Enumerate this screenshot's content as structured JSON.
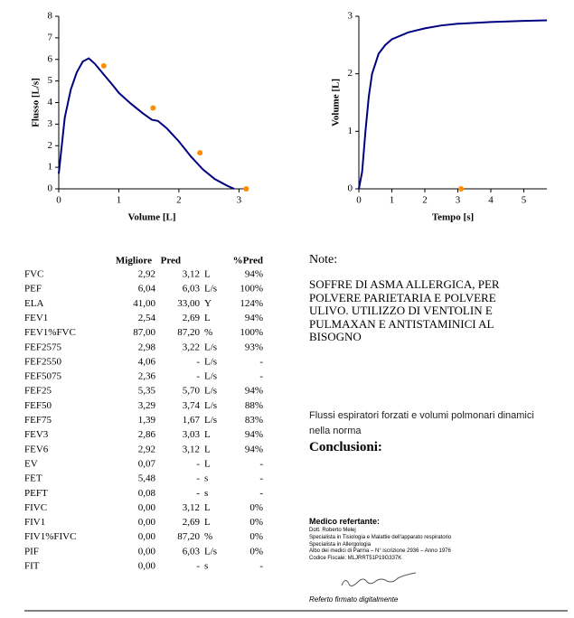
{
  "chart_data": [
    {
      "type": "line",
      "ylabel": "Flusso [L/s]",
      "xlabel": "Volume [L]",
      "color": "#000080",
      "xlim": [
        0,
        3.1
      ],
      "xticks": [
        0,
        1,
        2,
        3
      ],
      "ylim": [
        0,
        8
      ],
      "yticks": [
        0,
        1,
        2,
        3,
        4,
        5,
        6,
        7,
        8
      ],
      "x": [
        0,
        0.05,
        0.1,
        0.2,
        0.3,
        0.4,
        0.5,
        0.6,
        0.75,
        0.9,
        1.0,
        1.2,
        1.4,
        1.55,
        1.65,
        1.8,
        2.0,
        2.2,
        2.4,
        2.6,
        2.8,
        2.92
      ],
      "values": [
        0.7,
        2.0,
        3.3,
        4.6,
        5.4,
        5.9,
        6.05,
        5.8,
        5.3,
        4.8,
        4.45,
        3.95,
        3.5,
        3.2,
        3.15,
        2.8,
        2.2,
        1.5,
        0.9,
        0.45,
        0.15,
        0
      ],
      "points": {
        "color": "#ff8c00",
        "x": [
          0.75,
          1.57,
          2.35,
          3.12
        ],
        "values": [
          5.7,
          3.75,
          1.67,
          0
        ]
      }
    },
    {
      "type": "line",
      "ylabel": "Volume [L]",
      "xlabel": "Tempo [s]",
      "color": "#000080",
      "xlim": [
        0,
        5.7
      ],
      "xticks": [
        0,
        1,
        2,
        3,
        4,
        5
      ],
      "ylim": [
        0,
        3
      ],
      "yticks": [
        0,
        1,
        2,
        3
      ],
      "x": [
        0,
        0.1,
        0.2,
        0.3,
        0.4,
        0.6,
        0.8,
        1,
        1.5,
        2,
        2.5,
        3,
        4,
        5,
        5.7
      ],
      "values": [
        0,
        0.3,
        1.0,
        1.6,
        2.0,
        2.35,
        2.5,
        2.6,
        2.72,
        2.79,
        2.84,
        2.87,
        2.9,
        2.92,
        2.93
      ],
      "points": {
        "color": "#ff8c00",
        "x": [
          3.1
        ],
        "values": [
          0
        ]
      }
    }
  ],
  "table": {
    "header": [
      "Migliore",
      "Pred",
      "%Pred"
    ],
    "rows": [
      [
        "FVC",
        "2,92",
        "3,12",
        "L",
        "94%"
      ],
      [
        "PEF",
        "6,04",
        "6,03",
        "L/s",
        "100%"
      ],
      [
        "ELA",
        "41,00",
        "33,00",
        "Y",
        "124%"
      ],
      [
        "FEV1",
        "2,54",
        "2,69",
        "L",
        "94%"
      ],
      [
        "FEV1%FVC",
        "87,00",
        "87,20",
        "%",
        "100%"
      ],
      [
        "FEF2575",
        "2,98",
        "3,22",
        "L/s",
        "93%"
      ],
      [
        "FEF2550",
        "4,06",
        "-",
        "L/s",
        "-"
      ],
      [
        "FEF5075",
        "2,36",
        "-",
        "L/s",
        "-"
      ],
      [
        "FEF25",
        "5,35",
        "5,70",
        "L/s",
        "94%"
      ],
      [
        "FEF50",
        "3,29",
        "3,74",
        "L/s",
        "88%"
      ],
      [
        "FEF75",
        "1,39",
        "1,67",
        "L/s",
        "83%"
      ],
      [
        "FEV3",
        "2,86",
        "3,03",
        "L",
        "94%"
      ],
      [
        "FEV6",
        "2,92",
        "3,12",
        "L",
        "94%"
      ],
      [
        "EV",
        "0,07",
        "-",
        "L",
        "-"
      ],
      [
        "FET",
        "5,48",
        "-",
        "s",
        "-"
      ],
      [
        "PEFT",
        "0,08",
        "-",
        "s",
        "-"
      ],
      [
        "FIVC",
        "0,00",
        "3,12",
        "L",
        "0%"
      ],
      [
        "FIV1",
        "0,00",
        "2,69",
        "L",
        "0%"
      ],
      [
        "FIV1%FIVC",
        "0,00",
        "87,20",
        "%",
        "0%"
      ],
      [
        "PIF",
        "0,00",
        "6,03",
        "L/s",
        "0%"
      ],
      [
        "FIT",
        "0,00",
        "-",
        "s",
        "-"
      ]
    ]
  },
  "note": {
    "title": "Note:",
    "lines": [
      "SOFFRE DI ASMA ALLERGICA, PER",
      "POLVERE PARIETARIA E POLVERE",
      "ULIVO. UTILIZZO DI VENTOLIN E",
      "PULMAXAN E ANTISTAMINICI AL",
      "BISOGNO"
    ]
  },
  "finding": {
    "lines": [
      "Flussi espiratori forzati e volumi polmonari dinamici",
      "nella norma"
    ]
  },
  "conclusions": {
    "title": "Conclusioni:"
  },
  "doctor": {
    "title": "Medico refertante:",
    "lines": [
      "Dott. Roberto Melej",
      "Specialista in Tisiologia e Malattie dell'apparato respiratorio",
      "Specialista in Allergologia",
      "Albo dei medici di Parma – N° iscrizione 2936 – Anno 1976",
      "Codice Fiscale: MLJRRT51P19G337K"
    ],
    "signed": "Referto firmato digitalmente"
  }
}
